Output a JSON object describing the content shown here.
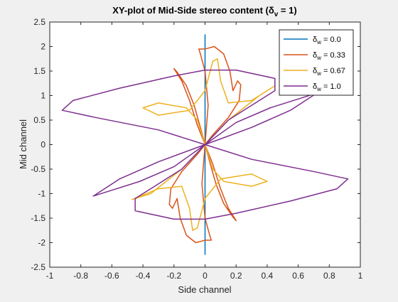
{
  "chart_data": {
    "type": "line",
    "title": {
      "prefix": "XY-plot of Mid-Side stereo content (",
      "delta": "δ",
      "subscript": "v",
      "suffix": " = 1)"
    },
    "xlabel": "Side channel",
    "ylabel": "Mid channel",
    "xlim": [
      -1,
      1
    ],
    "ylim": [
      -2.5,
      2.5
    ],
    "x_ticks": [
      -1,
      -0.8,
      -0.6,
      -0.4,
      -0.2,
      0,
      0.2,
      0.4,
      0.6,
      0.8,
      1
    ],
    "x_tick_labels": [
      "-1",
      "-0.8",
      "-0.6",
      "-0.4",
      "-0.2",
      "0",
      "0.2",
      "0.4",
      "0.6",
      "0.8",
      "1"
    ],
    "y_ticks": [
      -2.5,
      -2,
      -1.5,
      -1,
      -0.5,
      0,
      0.5,
      1,
      1.5,
      2,
      2.5
    ],
    "y_tick_labels": [
      "-2.5",
      "-2",
      "-1.5",
      "-1",
      "-0.5",
      "0",
      "0.5",
      "1",
      "1.5",
      "2",
      "2.5"
    ],
    "grid": false,
    "legend_position": "top-right",
    "series": [
      {
        "legend_symbol": "δ",
        "legend_subscript": "w",
        "legend_value": " = 0.0",
        "color": "#0072BD",
        "points": [
          [
            0.0,
            2.25
          ],
          [
            0.0,
            -2.25
          ]
        ]
      },
      {
        "legend_symbol": "δ",
        "legend_subscript": "w",
        "legend_value": " = 0.33",
        "color": "#D95319",
        "points": [
          [
            0.0,
            0.0
          ],
          [
            0.02,
            0.8
          ],
          [
            0.0,
            1.5
          ],
          [
            -0.03,
            1.85
          ],
          [
            -0.04,
            1.95
          ],
          [
            0.0,
            1.95
          ],
          [
            0.06,
            2.0
          ],
          [
            0.12,
            1.85
          ],
          [
            0.16,
            1.5
          ],
          [
            0.18,
            1.1
          ],
          [
            0.21,
            1.3
          ],
          [
            0.23,
            1.22
          ],
          [
            0.22,
            0.9
          ],
          [
            0.15,
            0.55
          ],
          [
            0.05,
            0.2
          ],
          [
            0.0,
            0.0
          ],
          [
            -0.05,
            0.4
          ],
          [
            -0.1,
            0.9
          ],
          [
            -0.15,
            1.3
          ],
          [
            -0.2,
            1.55
          ],
          [
            -0.18,
            1.48
          ],
          [
            -0.12,
            1.2
          ],
          [
            -0.07,
            0.8
          ],
          [
            -0.03,
            0.35
          ],
          [
            0.0,
            0.0
          ],
          [
            -0.02,
            -0.8
          ],
          [
            0.0,
            -1.5
          ],
          [
            0.03,
            -1.85
          ],
          [
            0.04,
            -1.95
          ],
          [
            0.0,
            -1.95
          ],
          [
            -0.06,
            -2.0
          ],
          [
            -0.12,
            -1.85
          ],
          [
            -0.16,
            -1.5
          ],
          [
            -0.18,
            -1.1
          ],
          [
            -0.21,
            -1.3
          ],
          [
            -0.23,
            -1.22
          ],
          [
            -0.22,
            -0.9
          ],
          [
            -0.15,
            -0.55
          ],
          [
            -0.05,
            -0.2
          ],
          [
            0.0,
            0.0
          ],
          [
            0.05,
            -0.4
          ],
          [
            0.1,
            -0.9
          ],
          [
            0.15,
            -1.3
          ],
          [
            0.2,
            -1.55
          ],
          [
            0.18,
            -1.48
          ],
          [
            0.12,
            -1.2
          ],
          [
            0.07,
            -0.8
          ],
          [
            0.03,
            -0.35
          ],
          [
            0.0,
            0.0
          ]
        ]
      },
      {
        "legend_symbol": "δ",
        "legend_subscript": "w",
        "legend_value": " = 0.67",
        "color": "#EDB120",
        "points": [
          [
            0.0,
            0.0
          ],
          [
            -0.05,
            0.5
          ],
          [
            -0.12,
            0.75
          ],
          [
            -0.3,
            0.85
          ],
          [
            -0.4,
            0.75
          ],
          [
            -0.3,
            0.6
          ],
          [
            -0.1,
            0.7
          ],
          [
            0.0,
            1.1
          ],
          [
            0.05,
            1.7
          ],
          [
            0.08,
            1.75
          ],
          [
            0.1,
            1.3
          ],
          [
            0.15,
            0.85
          ],
          [
            0.3,
            0.9
          ],
          [
            0.45,
            1.2
          ],
          [
            0.35,
            1.0
          ],
          [
            0.15,
            0.5
          ],
          [
            0.0,
            0.0
          ],
          [
            0.05,
            -0.5
          ],
          [
            0.12,
            -0.75
          ],
          [
            0.3,
            -0.85
          ],
          [
            0.4,
            -0.75
          ],
          [
            0.3,
            -0.6
          ],
          [
            0.1,
            -0.7
          ],
          [
            0.0,
            -1.1
          ],
          [
            -0.05,
            -1.7
          ],
          [
            -0.08,
            -1.75
          ],
          [
            -0.1,
            -1.3
          ],
          [
            -0.15,
            -0.85
          ],
          [
            -0.3,
            -0.9
          ],
          [
            -0.47,
            -1.12
          ],
          [
            -0.35,
            -1.0
          ],
          [
            -0.15,
            -0.5
          ],
          [
            0.0,
            0.0
          ]
        ]
      },
      {
        "legend_symbol": "δ",
        "legend_subscript": "w",
        "legend_value": " = 1.0",
        "color": "#7E2F8E",
        "points": [
          [
            0.0,
            0.0
          ],
          [
            -0.3,
            0.3
          ],
          [
            -0.7,
            0.55
          ],
          [
            -0.92,
            0.7
          ],
          [
            -0.85,
            0.9
          ],
          [
            -0.55,
            1.15
          ],
          [
            -0.2,
            1.4
          ],
          [
            0.0,
            1.52
          ],
          [
            0.2,
            1.52
          ],
          [
            0.45,
            1.35
          ],
          [
            0.45,
            1.1
          ],
          [
            0.3,
            0.8
          ],
          [
            0.15,
            0.5
          ],
          [
            0.0,
            0.0
          ],
          [
            -0.2,
            -0.45
          ],
          [
            -0.42,
            -0.75
          ],
          [
            -0.62,
            -0.95
          ],
          [
            -0.72,
            -1.05
          ],
          [
            -0.55,
            -0.7
          ],
          [
            -0.3,
            -0.35
          ],
          [
            0.0,
            0.0
          ],
          [
            0.3,
            -0.3
          ],
          [
            0.7,
            -0.55
          ],
          [
            0.92,
            -0.7
          ],
          [
            0.85,
            -0.9
          ],
          [
            0.55,
            -1.15
          ],
          [
            0.2,
            -1.4
          ],
          [
            0.0,
            -1.52
          ],
          [
            -0.2,
            -1.52
          ],
          [
            -0.45,
            -1.35
          ],
          [
            -0.45,
            -1.1
          ],
          [
            -0.3,
            -0.8
          ],
          [
            -0.15,
            -0.5
          ],
          [
            0.0,
            0.0
          ],
          [
            0.2,
            0.45
          ],
          [
            0.42,
            0.75
          ],
          [
            0.62,
            0.95
          ],
          [
            0.72,
            1.05
          ],
          [
            0.55,
            0.7
          ],
          [
            0.3,
            0.35
          ],
          [
            0.0,
            0.0
          ]
        ]
      }
    ]
  }
}
